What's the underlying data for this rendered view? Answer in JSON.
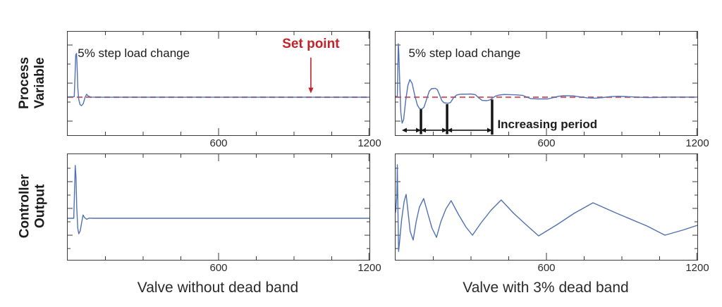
{
  "colors": {
    "line_blue": "#5171b2",
    "setpoint_red": "#d4646e",
    "setpoint_label_red": "#c2232b",
    "annotation_black": "#151515",
    "frame": "#3a3a3a",
    "text_dark": "#2a2a2a"
  },
  "row_labels": [
    {
      "line1": "Process",
      "line2": "Variable"
    },
    {
      "line1": "Controller",
      "line2": "Output"
    }
  ],
  "captions": {
    "left": "Valve without dead band",
    "right": "Valve with 3% dead band"
  },
  "chart_data": [
    {
      "id": "pv_no_deadband",
      "type": "line",
      "title": "Process Variable — valve without dead band",
      "x_range": [
        0,
        1200
      ],
      "x_ticks_every": 150,
      "x_labeled_ticks": [
        {
          "value": 600,
          "label": "600"
        },
        {
          "value": 1200,
          "label": "1200"
        }
      ],
      "y_axis": "unlabeled (arbitrary units, normalized 0-1)",
      "y_tick_norms": [
        0.136,
        0.32,
        0.503,
        0.687,
        0.871
      ],
      "y_tick_long": [
        0,
        2,
        4
      ],
      "setpoint": {
        "y": 0.367,
        "color": "#d4646e",
        "dashed": true
      },
      "series": [
        {
          "name": "process variable",
          "color": "#5171b2",
          "points": [
            [
              0,
              0.37
            ],
            [
              26,
              0.372
            ],
            [
              29,
              0.55
            ],
            [
              32,
              0.775
            ],
            [
              35,
              0.79
            ],
            [
              37,
              0.7
            ],
            [
              40,
              0.46
            ],
            [
              44,
              0.345
            ],
            [
              49,
              0.295
            ],
            [
              55,
              0.285
            ],
            [
              62,
              0.305
            ],
            [
              69,
              0.365
            ],
            [
              75,
              0.395
            ],
            [
              82,
              0.378
            ],
            [
              92,
              0.368
            ],
            [
              110,
              0.367
            ],
            [
              1200,
              0.367
            ]
          ]
        }
      ],
      "annotations": {
        "texts": [
          {
            "id": "step-load-annotation",
            "text": "5% step load change",
            "t": 40,
            "y": 0.79,
            "size": 17
          },
          {
            "id": "setpoint-annotation",
            "text": "Set point",
            "t": 967,
            "y": 0.878,
            "color": "#c2232b",
            "bold": true,
            "size": 19,
            "center": true
          }
        ],
        "down_arrow": {
          "t": 967,
          "y_from": 0.75,
          "y_to": 0.405,
          "color": "#c2232b"
        }
      }
    },
    {
      "id": "pv_deadband",
      "type": "line",
      "title": "Process Variable — valve with 3% dead band",
      "x_range": [
        0,
        1200
      ],
      "x_ticks_every": 150,
      "x_labeled_ticks": [
        {
          "value": 600,
          "label": "600"
        },
        {
          "value": 1200,
          "label": "1200"
        }
      ],
      "y_axis": "unlabeled (arbitrary units, normalized 0-1)",
      "y_tick_norms": [
        0.136,
        0.32,
        0.503,
        0.687,
        0.871
      ],
      "y_tick_long": [
        0,
        2,
        4
      ],
      "setpoint": {
        "y": 0.367,
        "color": "#d4646e",
        "dashed": true
      },
      "series": [
        {
          "name": "process variable",
          "color": "#5171b2",
          "points": [
            [
              0,
              0.374
            ],
            [
              7,
              0.374
            ],
            [
              9,
              0.62
            ],
            [
              11,
              0.884
            ],
            [
              13,
              0.8
            ],
            [
              17,
              0.48
            ],
            [
              21,
              0.22
            ],
            [
              26,
              0.116
            ],
            [
              32,
              0.15
            ],
            [
              40,
              0.33
            ],
            [
              49,
              0.48
            ],
            [
              57,
              0.537
            ],
            [
              66,
              0.5
            ],
            [
              76,
              0.39
            ],
            [
              87,
              0.29
            ],
            [
              96,
              0.255
            ],
            [
              104,
              0.252
            ],
            [
              113,
              0.27
            ],
            [
              124,
              0.35
            ],
            [
              134,
              0.425
            ],
            [
              143,
              0.449
            ],
            [
              158,
              0.453
            ],
            [
              166,
              0.44
            ],
            [
              175,
              0.39
            ],
            [
              184,
              0.335
            ],
            [
              193,
              0.313
            ],
            [
              208,
              0.308
            ],
            [
              218,
              0.315
            ],
            [
              230,
              0.36
            ],
            [
              242,
              0.387
            ],
            [
              255,
              0.395
            ],
            [
              300,
              0.398
            ],
            [
              317,
              0.392
            ],
            [
              331,
              0.36
            ],
            [
              344,
              0.336
            ],
            [
              362,
              0.333
            ],
            [
              375,
              0.34
            ],
            [
              388,
              0.363
            ],
            [
              398,
              0.378
            ],
            [
              412,
              0.388
            ],
            [
              432,
              0.393
            ],
            [
              478,
              0.39
            ],
            [
              505,
              0.385
            ],
            [
              522,
              0.368
            ],
            [
              538,
              0.353
            ],
            [
              565,
              0.35
            ],
            [
              605,
              0.35
            ],
            [
              625,
              0.362
            ],
            [
              648,
              0.376
            ],
            [
              668,
              0.381
            ],
            [
              705,
              0.38
            ],
            [
              728,
              0.372
            ],
            [
              762,
              0.361
            ],
            [
              795,
              0.358
            ],
            [
              825,
              0.364
            ],
            [
              852,
              0.372
            ],
            [
              885,
              0.376
            ],
            [
              925,
              0.372
            ],
            [
              965,
              0.367
            ],
            [
              1010,
              0.364
            ],
            [
              1055,
              0.366
            ],
            [
              1100,
              0.369
            ],
            [
              1150,
              0.368
            ],
            [
              1200,
              0.368
            ]
          ]
        }
      ],
      "annotations": {
        "texts": [
          {
            "id": "step-load-annotation",
            "text": "5% step load change",
            "t": 52,
            "y": 0.79,
            "size": 17
          },
          {
            "id": "increasing-period-annotation",
            "text": "Increasing period",
            "t": 405,
            "y": 0.105,
            "bold": true,
            "size": 17
          }
        ],
        "bars": [
          {
            "t": 101,
            "y_top": 0.25,
            "y_bottom": 0.01
          },
          {
            "t": 205,
            "y_top": 0.3,
            "y_bottom": 0.01
          },
          {
            "t": 384,
            "y_top": 0.345,
            "y_bottom": 0.005
          }
        ],
        "arrows": [
          {
            "t1": 25,
            "t2": 101,
            "y": 0.048
          },
          {
            "t1": 101,
            "t2": 205,
            "y": 0.048
          },
          {
            "t1": 205,
            "t2": 384,
            "y": 0.048
          }
        ]
      }
    },
    {
      "id": "co_no_deadband",
      "type": "line",
      "title": "Controller Output — valve without dead band",
      "x_range": [
        0,
        1200
      ],
      "x_ticks_every": 150,
      "x_labeled_ticks": [
        {
          "value": 600,
          "label": "600"
        },
        {
          "value": 1200,
          "label": "1200"
        }
      ],
      "y_axis": "unlabeled (arbitrary units, normalized 0-1)",
      "y_tick_norms": [
        0.107,
        0.233,
        0.36,
        0.487,
        0.613,
        0.74,
        0.867
      ],
      "y_tick_long": [
        1,
        3,
        5
      ],
      "series": [
        {
          "name": "controller output",
          "color": "#5171b2",
          "points": [
            [
              0,
              0.393
            ],
            [
              24,
              0.393
            ],
            [
              27,
              0.62
            ],
            [
              30,
              0.893
            ],
            [
              33,
              0.78
            ],
            [
              36,
              0.5
            ],
            [
              40,
              0.3
            ],
            [
              44,
              0.247
            ],
            [
              50,
              0.275
            ],
            [
              56,
              0.36
            ],
            [
              61,
              0.425
            ],
            [
              67,
              0.4
            ],
            [
              75,
              0.385
            ],
            [
              86,
              0.395
            ],
            [
              100,
              0.393
            ],
            [
              1200,
              0.393
            ]
          ]
        }
      ]
    },
    {
      "id": "co_deadband",
      "type": "line",
      "title": "Controller Output — valve with 3% dead band",
      "x_range": [
        0,
        1200
      ],
      "x_ticks_every": 150,
      "x_labeled_ticks": [
        {
          "value": 600,
          "label": "600"
        },
        {
          "value": 1200,
          "label": "1200"
        }
      ],
      "y_axis": "unlabeled (arbitrary units, normalized 0-1)",
      "y_tick_norms": [
        0.107,
        0.233,
        0.36,
        0.487,
        0.613,
        0.74,
        0.867
      ],
      "y_tick_long": [
        1,
        3,
        5
      ],
      "series": [
        {
          "name": "controller output",
          "color": "#5171b2",
          "points": [
            [
              0,
              0.45
            ],
            [
              5,
              0.6
            ],
            [
              7,
              0.9
            ],
            [
              9,
              0.55
            ],
            [
              12,
              0.08
            ],
            [
              16,
              0.17
            ],
            [
              24,
              0.38
            ],
            [
              34,
              0.55
            ],
            [
              42,
              0.62
            ],
            [
              50,
              0.45
            ],
            [
              58,
              0.27
            ],
            [
              70,
              0.187
            ],
            [
              82,
              0.36
            ],
            [
              95,
              0.5
            ],
            [
              112,
              0.58
            ],
            [
              128,
              0.44
            ],
            [
              145,
              0.3
            ],
            [
              163,
              0.213
            ],
            [
              180,
              0.36
            ],
            [
              200,
              0.48
            ],
            [
              221,
              0.56
            ],
            [
              250,
              0.43
            ],
            [
              280,
              0.31
            ],
            [
              306,
              0.233
            ],
            [
              340,
              0.35
            ],
            [
              380,
              0.47
            ],
            [
              420,
              0.567
            ],
            [
              470,
              0.44
            ],
            [
              520,
              0.33
            ],
            [
              569,
              0.227
            ],
            [
              640,
              0.33
            ],
            [
              710,
              0.44
            ],
            [
              785,
              0.54
            ],
            [
              880,
              0.44
            ],
            [
              1000,
              0.32
            ],
            [
              1071,
              0.233
            ],
            [
              1140,
              0.28
            ],
            [
              1200,
              0.327
            ]
          ]
        }
      ]
    }
  ]
}
